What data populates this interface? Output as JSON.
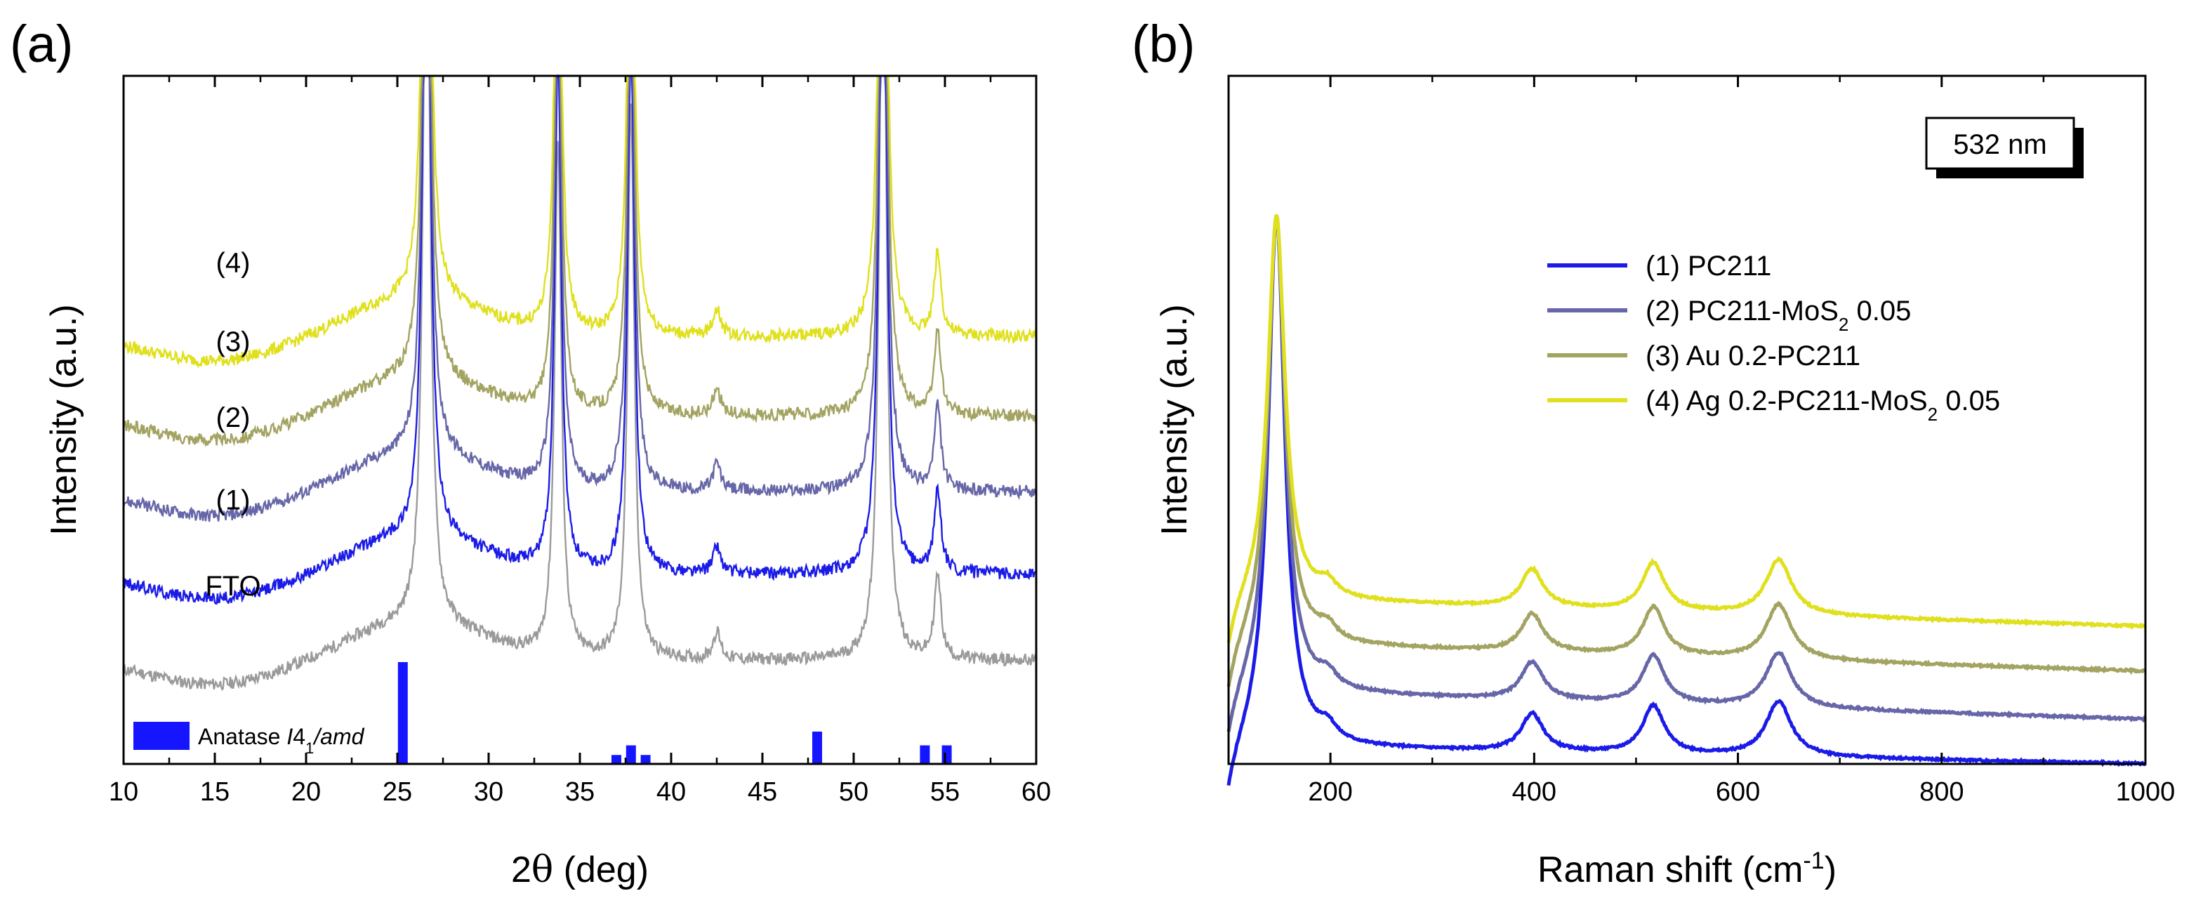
{
  "figure": {
    "panel_a_label": "(a)",
    "panel_b_label": "(b)"
  },
  "chart_data": [
    {
      "panel": "(a)",
      "type": "line",
      "xlabel_main": "2",
      "xlabel_theta": "θ",
      "xlabel_rest": " (deg)",
      "ylabel": "Intensity (a.u.)",
      "xlim": [
        10,
        60
      ],
      "ylim": [
        0,
        10
      ],
      "xticks": [
        10,
        15,
        20,
        25,
        30,
        35,
        40,
        45,
        50,
        55,
        60
      ],
      "yticks_shown": false,
      "baseline_scale": [
        0.55,
        0.9
      ],
      "series": [
        {
          "name": "FTO",
          "label": "FTO",
          "color": "#9a9a9a",
          "offset": 1.5,
          "labelX": 16.0
        },
        {
          "name": "(1)",
          "label": "(1)",
          "color": "#1b1be8",
          "offset": 2.75,
          "labelX": 16.0
        },
        {
          "name": "(2)",
          "label": "(2)",
          "color": "#6666a8",
          "offset": 3.95,
          "labelX": 16.0
        },
        {
          "name": "(3)",
          "label": "(3)",
          "color": "#a3a362",
          "offset": 5.05,
          "labelX": 16.0
        },
        {
          "name": "(4)",
          "label": "(4)",
          "color": "#e0e01e",
          "offset": 6.2,
          "labelX": 16.0
        }
      ],
      "peaks": [
        {
          "x": 26.6,
          "h": 12.0,
          "w": 0.22
        },
        {
          "x": 33.8,
          "h": 7.5,
          "w": 0.22
        },
        {
          "x": 37.8,
          "h": 8.0,
          "w": 0.22
        },
        {
          "x": 51.6,
          "h": 12.0,
          "w": 0.22
        },
        {
          "x": 54.6,
          "h": 1.2,
          "w": 0.22
        },
        {
          "x": 42.5,
          "h": 0.4,
          "w": 0.25
        }
      ],
      "reference": {
        "legend_main": "Anatase ",
        "legend_italic_1": "I",
        "legend_num": "4",
        "legend_sub": "1",
        "legend_italic_2": "/amd",
        "color": "#1515ff",
        "bars": [
          {
            "x": 25.3,
            "h": 1.48
          },
          {
            "x": 37.0,
            "h": 0.13
          },
          {
            "x": 37.8,
            "h": 0.27
          },
          {
            "x": 38.6,
            "h": 0.13
          },
          {
            "x": 48.0,
            "h": 0.47
          },
          {
            "x": 53.9,
            "h": 0.27
          },
          {
            "x": 55.1,
            "h": 0.27
          }
        ]
      }
    },
    {
      "panel": "(b)",
      "type": "line",
      "xlabel_main": "Raman shift (cm",
      "xlabel_sup": "-1",
      "xlabel_end": ")",
      "ylabel": "Intensity (a.u.)",
      "xlim": [
        100,
        1000
      ],
      "ylim": [
        0,
        10
      ],
      "xticks": [
        200,
        400,
        600,
        800,
        1000
      ],
      "yticks_shown": false,
      "annotation": "532 nm",
      "peak_scale": [
        8.0,
        0.85
      ],
      "series": [
        {
          "name": "(1) PC211",
          "color": "#1b1be8",
          "offset": 0.25,
          "end": 0.0,
          "legend": {
            "text": "(1) PC211",
            "sub": "",
            "after": ""
          }
        },
        {
          "name": "(2) PC211-MoS2 0.05",
          "color": "#6666a8",
          "offset": 1.05,
          "end": 0.65,
          "legend": {
            "text": "(2) PC211-MoS",
            "sub": "2",
            "after": " 0.05"
          }
        },
        {
          "name": "(3) Au 0.2-PC211",
          "color": "#a3a362",
          "offset": 1.75,
          "end": 1.35,
          "legend": {
            "text": "(3) Au 0.2-PC211",
            "sub": "",
            "after": ""
          }
        },
        {
          "name": "(4) Ag 0.2-PC211-MoS2 0.05",
          "color": "#e0e01e",
          "offset": 2.4,
          "end": 2.0,
          "legend": {
            "text": "(4) Ag 0.2-PC211-MoS",
            "sub": "2",
            "after": " 0.05"
          }
        }
      ],
      "peaks": [
        {
          "x": 147,
          "w": 10
        },
        {
          "x": 197,
          "h": 0.2,
          "w": 10
        },
        {
          "x": 398,
          "h": 0.55,
          "w": 13
        },
        {
          "x": 517,
          "h": 0.7,
          "w": 13
        },
        {
          "x": 640,
          "h": 0.8,
          "w": 15
        }
      ]
    }
  ]
}
